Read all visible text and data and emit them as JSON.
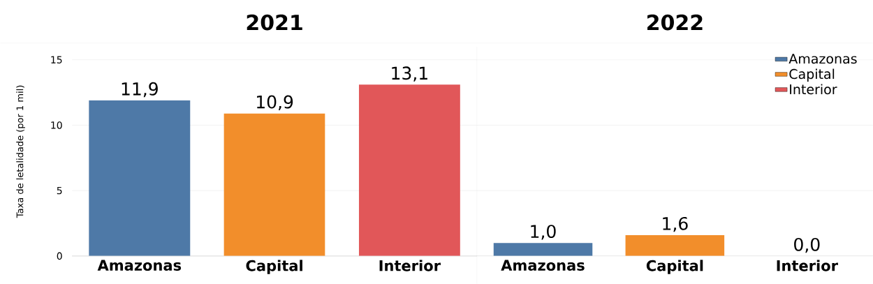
{
  "chart_data": [
    {
      "type": "bar",
      "title": "2021",
      "ylabel": "Taxa de letalidade (por 1 mil)",
      "categories": [
        "Amazonas",
        "Capital",
        "Interior"
      ],
      "series": [
        {
          "color": "#4e79a7",
          "values": [
            11.9,
            null,
            null
          ],
          "value_labels": [
            "11,9",
            null,
            null
          ]
        },
        {
          "color": "#f28e2b",
          "values": [
            null,
            10.9,
            null
          ],
          "value_labels": [
            null,
            "10,9",
            null
          ]
        },
        {
          "color": "#e15759",
          "values": [
            null,
            null,
            13.1
          ],
          "value_labels": [
            null,
            null,
            "13,1"
          ]
        }
      ],
      "ylim": [
        0,
        16
      ],
      "yticks": [
        0,
        5,
        10,
        15
      ],
      "grid": "y"
    },
    {
      "type": "bar",
      "title": "2022",
      "categories": [
        "Amazonas",
        "Capital",
        "Interior"
      ],
      "series": [
        {
          "name": "Amazonas",
          "color": "#4e79a7",
          "values": [
            1.0,
            null,
            null
          ],
          "value_labels": [
            "1,0",
            null,
            null
          ]
        },
        {
          "name": "Capital",
          "color": "#f28e2b",
          "values": [
            null,
            1.6,
            null
          ],
          "value_labels": [
            null,
            "1,6",
            null
          ]
        },
        {
          "name": "Interior",
          "color": "#e15759",
          "values": [
            null,
            null,
            0.0
          ],
          "value_labels": [
            null,
            null,
            "0,0"
          ]
        }
      ],
      "ylim": [
        0,
        16
      ],
      "yticks": [
        0,
        5,
        10,
        15
      ],
      "grid": "y",
      "tick_labels": "x",
      "legend": "top right"
    }
  ]
}
